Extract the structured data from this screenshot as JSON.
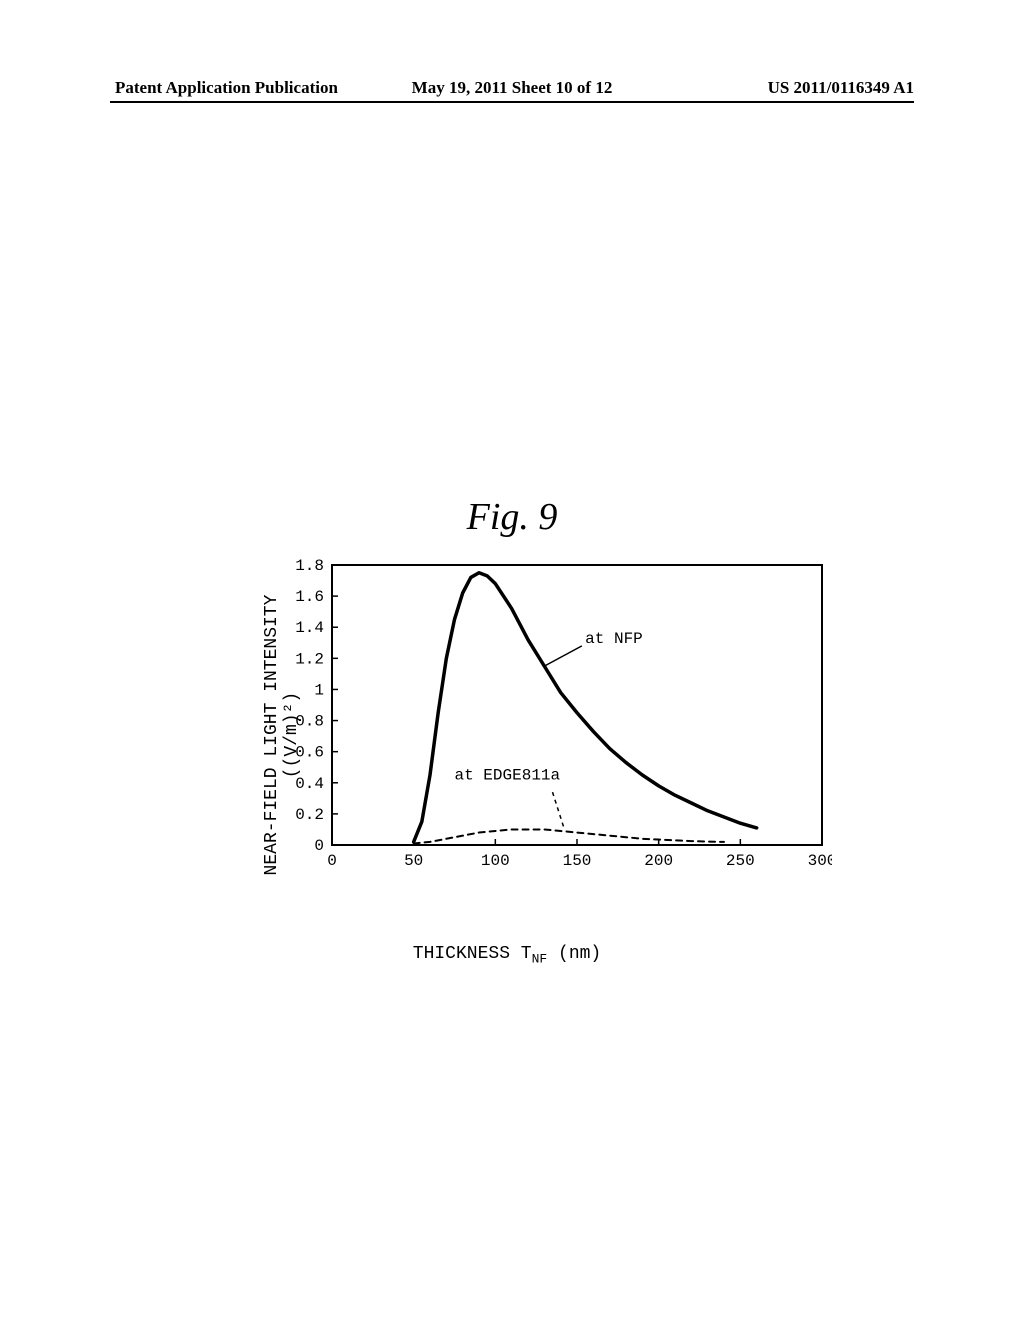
{
  "header": {
    "left": "Patent Application Publication",
    "center": "May 19, 2011  Sheet 10 of 12",
    "right": "US 2011/0116349 A1"
  },
  "figure_label": "Fig. 9",
  "chart": {
    "type": "line",
    "y_label_line1": "NEAR-FIELD LIGHT INTENSITY",
    "y_label_line2": "((V/m)²)",
    "x_label": "THICKNESS  T",
    "x_label_sub": "NF",
    "x_label_unit": " (nm)",
    "xlim": [
      0,
      300
    ],
    "ylim": [
      0,
      1.8
    ],
    "x_ticks": [
      0,
      50,
      100,
      150,
      200,
      250,
      300
    ],
    "y_ticks": [
      0,
      0.2,
      0.4,
      0.6,
      0.8,
      1,
      1.2,
      1.4,
      1.6,
      1.8
    ],
    "axis_color": "#000000",
    "axis_width": 2,
    "tick_fontsize": 16,
    "tick_font": "Courier New",
    "series": [
      {
        "name": "at NFP",
        "label": "at NFP",
        "label_x": 155,
        "label_y": 1.3,
        "color": "#000000",
        "line_width": 3.5,
        "dash": "none",
        "points": [
          [
            50,
            0.02
          ],
          [
            55,
            0.15
          ],
          [
            60,
            0.45
          ],
          [
            65,
            0.85
          ],
          [
            70,
            1.2
          ],
          [
            75,
            1.45
          ],
          [
            80,
            1.62
          ],
          [
            85,
            1.72
          ],
          [
            90,
            1.75
          ],
          [
            95,
            1.73
          ],
          [
            100,
            1.68
          ],
          [
            110,
            1.52
          ],
          [
            120,
            1.32
          ],
          [
            130,
            1.15
          ],
          [
            140,
            0.98
          ],
          [
            150,
            0.85
          ],
          [
            160,
            0.73
          ],
          [
            170,
            0.62
          ],
          [
            180,
            0.53
          ],
          [
            190,
            0.45
          ],
          [
            200,
            0.38
          ],
          [
            210,
            0.32
          ],
          [
            220,
            0.27
          ],
          [
            230,
            0.22
          ],
          [
            240,
            0.18
          ],
          [
            250,
            0.14
          ],
          [
            260,
            0.11
          ]
        ],
        "leader_from": [
          153,
          1.28
        ],
        "leader_to": [
          130,
          1.15
        ]
      },
      {
        "name": "at EDGE811a",
        "label": "at EDGE811a",
        "label_x": 75,
        "label_y": 0.42,
        "color": "#000000",
        "line_width": 2,
        "dash": "6,5",
        "points": [
          [
            50,
            0.01
          ],
          [
            60,
            0.02
          ],
          [
            70,
            0.04
          ],
          [
            80,
            0.06
          ],
          [
            90,
            0.08
          ],
          [
            100,
            0.09
          ],
          [
            110,
            0.1
          ],
          [
            120,
            0.1
          ],
          [
            130,
            0.1
          ],
          [
            140,
            0.09
          ],
          [
            150,
            0.08
          ],
          [
            160,
            0.07
          ],
          [
            170,
            0.06
          ],
          [
            180,
            0.05
          ],
          [
            190,
            0.04
          ],
          [
            200,
            0.035
          ],
          [
            210,
            0.03
          ],
          [
            220,
            0.025
          ],
          [
            230,
            0.022
          ],
          [
            240,
            0.02
          ]
        ],
        "leader_from": [
          135,
          0.34
        ],
        "leader_to": [
          142,
          0.11
        ],
        "leader_dash": "4,4"
      }
    ]
  }
}
